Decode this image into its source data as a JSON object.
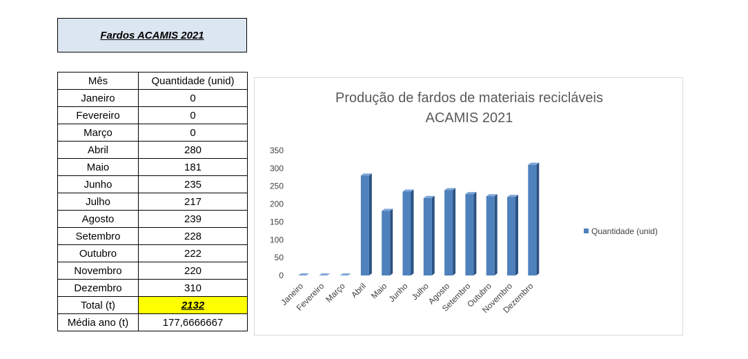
{
  "header": {
    "title": "Fardos ACAMIS 2021"
  },
  "table": {
    "headers": [
      "Mês",
      "Quantidade (unid)"
    ],
    "rows": [
      [
        "Janeiro",
        "0"
      ],
      [
        "Fevereiro",
        "0"
      ],
      [
        "Março",
        "0"
      ],
      [
        "Abril",
        "280"
      ],
      [
        "Maio",
        "181"
      ],
      [
        "Junho",
        "235"
      ],
      [
        "Julho",
        "217"
      ],
      [
        "Agosto",
        "239"
      ],
      [
        "Setembro",
        "228"
      ],
      [
        "Outubro",
        "222"
      ],
      [
        "Novembro",
        "220"
      ],
      [
        "Dezembro",
        "310"
      ]
    ],
    "total_label": "Total (t)",
    "total_value": "2132",
    "average_label": "Média ano (t)",
    "average_value": "177,6666667"
  },
  "chart_data": {
    "type": "bar",
    "title_lines": [
      "Produção de fardos de materiais recicláveis",
      "ACAMIS 2021"
    ],
    "categories": [
      "Janeiro",
      "Fevereiro",
      "Março",
      "Abril",
      "Maio",
      "Junho",
      "Julho",
      "Agosto",
      "Setembro",
      "Outubro",
      "Novembro",
      "Dezembro"
    ],
    "series": [
      {
        "name": "Quantidade (unid)",
        "values": [
          0,
          0,
          0,
          280,
          181,
          235,
          217,
          239,
          228,
          222,
          220,
          310
        ]
      }
    ],
    "ylim": [
      0,
      350
    ],
    "yticks": [
      0,
      50,
      100,
      150,
      200,
      250,
      300,
      350
    ],
    "grid": false,
    "legend": "right",
    "colors": {
      "bar_front": "#4f81bd",
      "bar_side": "#2c5282",
      "bar_top": "#7ea6d8"
    }
  }
}
